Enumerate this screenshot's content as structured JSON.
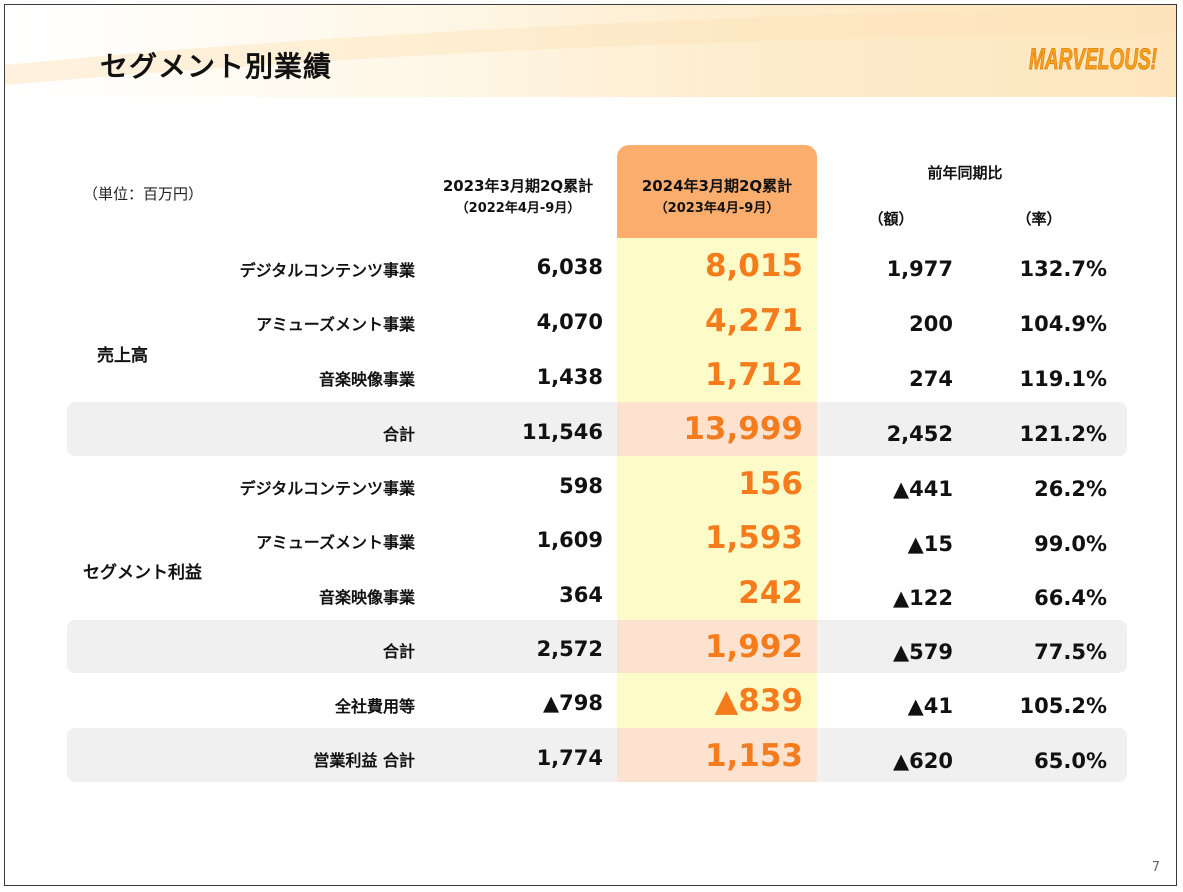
{
  "title": "セグメント別業績",
  "logo_text": "MARVELOUS!",
  "unit": "（単位：百万円）",
  "page_number": "7",
  "colors": {
    "accent": "#f47c1d",
    "current_header": "#fbad6e",
    "current_body": "#fdfcc8",
    "total_band": "#f0f0f0"
  },
  "headers": {
    "prev": {
      "main": "2023年3月期2Q累計",
      "sub": "（2022年4月-9月）"
    },
    "cur": {
      "main": "2024年3月期2Q累計",
      "sub": "（2023年4月-9月）"
    },
    "yoy": "前年同期比",
    "amount": "（額）",
    "rate": "（率）"
  },
  "groups": {
    "sales": "売上高",
    "segment_profit": "セグメント利益"
  },
  "rows": [
    {
      "label": "デジタルコンテンツ事業",
      "prev": "6,038",
      "cur": "8,015",
      "amount": "1,977",
      "rate": "132.7%"
    },
    {
      "label": "アミューズメント事業",
      "prev": "4,070",
      "cur": "4,271",
      "amount": "200",
      "rate": "104.9%"
    },
    {
      "label": "音楽映像事業",
      "prev": "1,438",
      "cur": "1,712",
      "amount": "274",
      "rate": "119.1%"
    },
    {
      "label": "合計",
      "prev": "11,546",
      "cur": "13,999",
      "amount": "2,452",
      "rate": "121.2%"
    },
    {
      "label": "デジタルコンテンツ事業",
      "prev": "598",
      "cur": "156",
      "amount": "▲441",
      "rate": "26.2%"
    },
    {
      "label": "アミューズメント事業",
      "prev": "1,609",
      "cur": "1,593",
      "amount": "▲15",
      "rate": "99.0%"
    },
    {
      "label": "音楽映像事業",
      "prev": "364",
      "cur": "242",
      "amount": "▲122",
      "rate": "66.4%"
    },
    {
      "label": "合計",
      "prev": "2,572",
      "cur": "1,992",
      "amount": "▲579",
      "rate": "77.5%"
    },
    {
      "label": "全社費用等",
      "prev": "▲798",
      "cur": "▲839",
      "amount": "▲41",
      "rate": "105.2%"
    },
    {
      "label": "営業利益 合計",
      "prev": "1,774",
      "cur": "1,153",
      "amount": "▲620",
      "rate": "65.0%"
    }
  ]
}
